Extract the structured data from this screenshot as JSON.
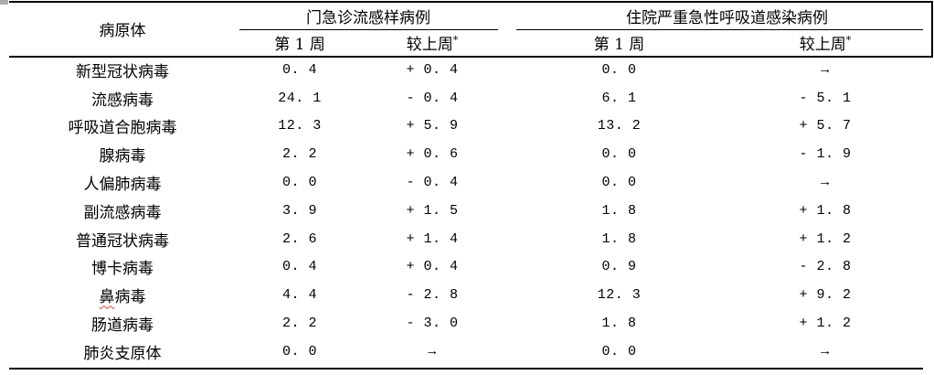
{
  "colors": {
    "rule": "#000000",
    "squiggle": "#e23b2e",
    "table_handle": "#ababab",
    "background": "#ffffff"
  },
  "table": {
    "col_pathogen": "病原体",
    "group_left": "门急诊流感样病例",
    "group_right": "住院严重急性呼吸道感染病例",
    "subcol_week": "第 1 周",
    "subcol_change": "较上周",
    "asterisk": "*",
    "rows": [
      {
        "pathogen": "新型冠状病毒",
        "l_week": "0. 4",
        "l_change": "+ 0. 4",
        "r_week": "0. 0",
        "r_change": "→"
      },
      {
        "pathogen": "流感病毒",
        "l_week": "24. 1",
        "l_change": "- 0. 4",
        "r_week": "6. 1",
        "r_change": "- 5. 1"
      },
      {
        "pathogen": "呼吸道合胞病毒",
        "l_week": "12. 3",
        "l_change": "+ 5. 9",
        "r_week": "13. 2",
        "r_change": "+ 5. 7"
      },
      {
        "pathogen": "腺病毒",
        "l_week": "2. 2",
        "l_change": "+ 0. 6",
        "r_week": "0. 0",
        "r_change": "- 1. 9"
      },
      {
        "pathogen": "人偏肺病毒",
        "l_week": "0. 0",
        "l_change": "- 0. 4",
        "r_week": "0. 0",
        "r_change": "→"
      },
      {
        "pathogen": "副流感病毒",
        "l_week": "3. 9",
        "l_change": "+ 1. 5",
        "r_week": "1. 8",
        "r_change": "+ 1. 8"
      },
      {
        "pathogen": "普通冠状病毒",
        "l_week": "2. 6",
        "l_change": "+ 1. 4",
        "r_week": "1. 8",
        "r_change": "+ 1. 2"
      },
      {
        "pathogen": "博卡病毒",
        "l_week": "0. 4",
        "l_change": "+ 0. 4",
        "r_week": "0. 9",
        "r_change": "- 2. 8"
      },
      {
        "pathogen": "鼻病毒",
        "squiggle_chars": 1,
        "l_week": "4. 4",
        "l_change": "- 2. 8",
        "r_week": "12. 3",
        "r_change": "+ 9. 2"
      },
      {
        "pathogen": "肠道病毒",
        "l_week": "2. 2",
        "l_change": "- 3. 0",
        "r_week": "1. 8",
        "r_change": "+ 1. 2"
      },
      {
        "pathogen": "肺炎支原体",
        "l_week": "0. 0",
        "l_change": "→",
        "r_week": "0. 0",
        "r_change": "→"
      }
    ]
  }
}
